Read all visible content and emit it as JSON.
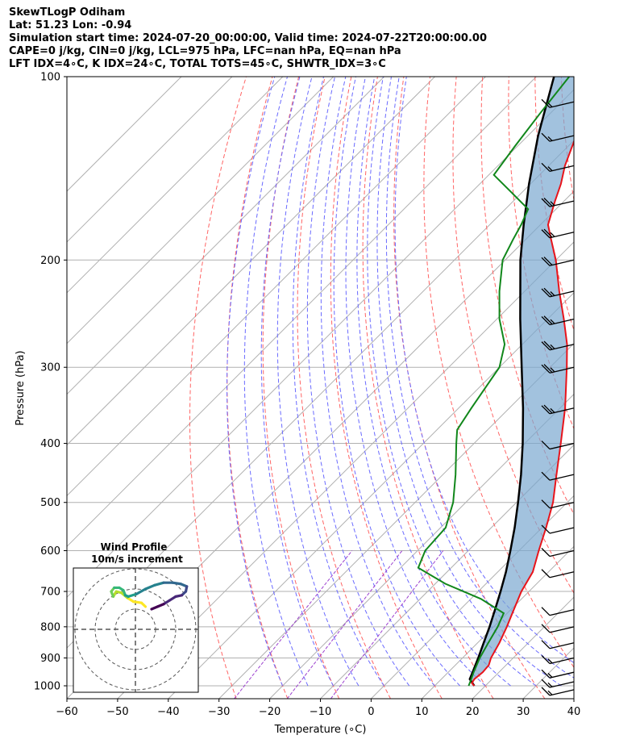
{
  "header": {
    "line1": "SkewTLogP Odiham",
    "line2": "Lat: 51.23   Lon: -0.94",
    "line3": "Simulation start time: 2024-07-20_00:00:00, Valid time: 2024-07-22T20:00:00.00",
    "line4": "CAPE=0 j/kg, CIN=0 j/kg, LCL=975 hPa, LFC=nan hPa, EQ=nan hPa",
    "line5": "LFT IDX=4∘C, K IDX=24∘C, TOTAL TOTS=45∘C, SHWTR_IDX=3∘C"
  },
  "chart_data": {
    "type": "line",
    "title": "SkewTLogP Odiham",
    "xlabel": "Temperature (∘C)",
    "ylabel": "Pressure (hPa)",
    "xlim": [
      -60,
      40
    ],
    "ylim": [
      1050,
      100
    ],
    "y_scale": "log",
    "x_ticks": [
      "−60",
      "−50",
      "−40",
      "−30",
      "−20",
      "−10",
      "0",
      "10",
      "20",
      "30",
      "40"
    ],
    "y_ticks": [
      "1000",
      "900",
      "800",
      "700",
      "600",
      "500",
      "400",
      "300",
      "200",
      "100"
    ],
    "colors": {
      "temperature": "#e8141b",
      "dewpoint": "#11871b",
      "parcel": "#000000",
      "cape_fill": "#7ba8d0",
      "isotherm": "#b0b0b0",
      "dry_adiabat": "#ff6464",
      "moist_adiabat": "#6a6aff",
      "mixing_ratio": "#9b3fcf"
    },
    "series": [
      {
        "points": [
          [
            1000,
            17.8
          ],
          [
            990,
            16.8
          ],
          [
            975,
            16.5
          ],
          [
            950,
            16.8
          ],
          [
            925,
            16.6
          ],
          [
            900,
            15.6
          ],
          [
            850,
            14.3
          ],
          [
            800,
            12.6
          ],
          [
            750,
            10.6
          ],
          [
            700,
            8.5
          ],
          [
            650,
            6.9
          ],
          [
            600,
            3.9
          ],
          [
            550,
            0.8
          ],
          [
            500,
            -2.8
          ],
          [
            450,
            -7.6
          ],
          [
            400,
            -12.9
          ],
          [
            350,
            -19.0
          ],
          [
            300,
            -26.7
          ],
          [
            275,
            -31.2
          ],
          [
            250,
            -36.8
          ],
          [
            225,
            -43.2
          ],
          [
            200,
            -50.0
          ],
          [
            185,
            -55.0
          ],
          [
            175,
            -58.5
          ],
          [
            160,
            -61.8
          ],
          [
            150,
            -64.0
          ],
          [
            140,
            -66.8
          ],
          [
            125,
            -70.5
          ],
          [
            115,
            -72.0
          ],
          [
            100,
            -75.0
          ]
        ]
      },
      {
        "points": [
          [
            1000,
            16.7
          ],
          [
            975,
            15.9
          ],
          [
            950,
            15.0
          ],
          [
            900,
            13.4
          ],
          [
            850,
            12.1
          ],
          [
            800,
            10.8
          ],
          [
            760,
            9.3
          ],
          [
            720,
            2.0
          ],
          [
            680,
            -8.0
          ],
          [
            640,
            -16.5
          ],
          [
            600,
            -18.5
          ],
          [
            550,
            -19.0
          ],
          [
            500,
            -22.5
          ],
          [
            450,
            -27.5
          ],
          [
            400,
            -33.5
          ],
          [
            380,
            -36.0
          ],
          [
            350,
            -37.5
          ],
          [
            300,
            -40.0
          ],
          [
            275,
            -43.5
          ],
          [
            250,
            -49.5
          ],
          [
            225,
            -55.0
          ],
          [
            200,
            -60.5
          ],
          [
            185,
            -62.5
          ],
          [
            175,
            -63.8
          ],
          [
            165,
            -65.5
          ],
          [
            155,
            -72.0
          ],
          [
            145,
            -79.0
          ],
          [
            130,
            -80.5
          ],
          [
            115,
            -82.0
          ],
          [
            100,
            -83.5
          ]
        ]
      },
      {
        "points": [
          [
            1000,
            17.8
          ],
          [
            975,
            15.6
          ],
          [
            950,
            14.8
          ],
          [
            900,
            13.1
          ],
          [
            850,
            11.2
          ],
          [
            800,
            9.2
          ],
          [
            750,
            6.9
          ],
          [
            700,
            4.4
          ],
          [
            650,
            1.6
          ],
          [
            600,
            -1.7
          ],
          [
            550,
            -5.4
          ],
          [
            500,
            -9.7
          ],
          [
            450,
            -14.6
          ],
          [
            400,
            -20.4
          ],
          [
            350,
            -27.3
          ],
          [
            300,
            -35.6
          ],
          [
            250,
            -45.4
          ],
          [
            200,
            -57.0
          ],
          [
            175,
            -63.3
          ],
          [
            150,
            -70.3
          ],
          [
            125,
            -78.0
          ],
          [
            100,
            -86.5
          ]
        ]
      }
    ],
    "wind_barbs": [
      {
        "p": 1015,
        "speed_kt": 15
      },
      {
        "p": 985,
        "speed_kt": 15
      },
      {
        "p": 950,
        "speed_kt": 15
      },
      {
        "p": 900,
        "speed_kt": 15
      },
      {
        "p": 850,
        "speed_kt": 10
      },
      {
        "p": 800,
        "speed_kt": 10
      },
      {
        "p": 750,
        "speed_kt": 10
      },
      {
        "p": 650,
        "speed_kt": 10
      },
      {
        "p": 600,
        "speed_kt": 10
      },
      {
        "p": 550,
        "speed_kt": 10
      },
      {
        "p": 500,
        "speed_kt": 10
      },
      {
        "p": 450,
        "speed_kt": 10
      },
      {
        "p": 400,
        "speed_kt": 10
      },
      {
        "p": 350,
        "speed_kt": 25
      },
      {
        "p": 300,
        "speed_kt": 25
      },
      {
        "p": 275,
        "speed_kt": 25
      },
      {
        "p": 250,
        "speed_kt": 25
      },
      {
        "p": 225,
        "speed_kt": 25
      },
      {
        "p": 200,
        "speed_kt": 20
      },
      {
        "p": 180,
        "speed_kt": 25
      },
      {
        "p": 160,
        "speed_kt": 25
      },
      {
        "p": 140,
        "speed_kt": 15
      },
      {
        "p": 125,
        "speed_kt": 15
      },
      {
        "p": 110,
        "speed_kt": 15
      }
    ],
    "wind_profile": {
      "title": "Wind Profile",
      "subtitle": "10m/s increment",
      "points": [
        [
          1.0,
          1.8
        ],
        [
          0.6,
          2.1
        ],
        [
          -0.2,
          2.2
        ],
        [
          -0.8,
          2.5
        ],
        [
          -1.4,
          2.9
        ],
        [
          -1.9,
          3.0
        ],
        [
          -2.2,
          2.6
        ],
        [
          -2.4,
          3.0
        ],
        [
          -2.1,
          3.3
        ],
        [
          -1.6,
          3.3
        ],
        [
          -1.2,
          3.1
        ],
        [
          -1.0,
          2.7
        ],
        [
          -0.7,
          2.6
        ],
        [
          0.1,
          2.8
        ],
        [
          1.0,
          3.2
        ],
        [
          1.9,
          3.5
        ],
        [
          2.8,
          3.7
        ],
        [
          3.7,
          3.7
        ],
        [
          4.5,
          3.6
        ],
        [
          5.1,
          3.4
        ],
        [
          5.0,
          3.0
        ],
        [
          4.6,
          2.7
        ],
        [
          4.0,
          2.6
        ],
        [
          3.4,
          2.3
        ],
        [
          2.8,
          2.0
        ],
        [
          2.2,
          1.8
        ],
        [
          1.6,
          1.6
        ]
      ],
      "rings": [
        1,
        2,
        3
      ]
    }
  }
}
